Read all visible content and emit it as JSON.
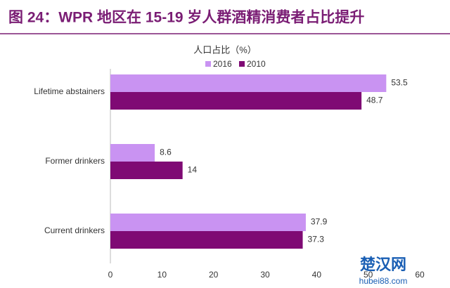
{
  "chart_data": {
    "type": "hbar",
    "title": "图 24：WPR 地区在 15-19 岁人群酒精消费者占比提升",
    "subtitle": "人口占比（%）",
    "categories": [
      "Lifetime abstainers",
      "Former drinkers",
      "Current drinkers"
    ],
    "series": [
      {
        "name": "2016",
        "color": "#c993f2",
        "values": [
          53.5,
          8.6,
          37.9
        ]
      },
      {
        "name": "2010",
        "color": "#7f0a74",
        "values": [
          48.7,
          14,
          37.3
        ]
      }
    ],
    "xlim": [
      0,
      60
    ],
    "xticks": [
      0,
      10,
      20,
      30,
      40,
      50,
      60
    ],
    "legend": "top"
  },
  "watermark": {
    "brand": "楚汉网",
    "site": "hubei88.com"
  }
}
